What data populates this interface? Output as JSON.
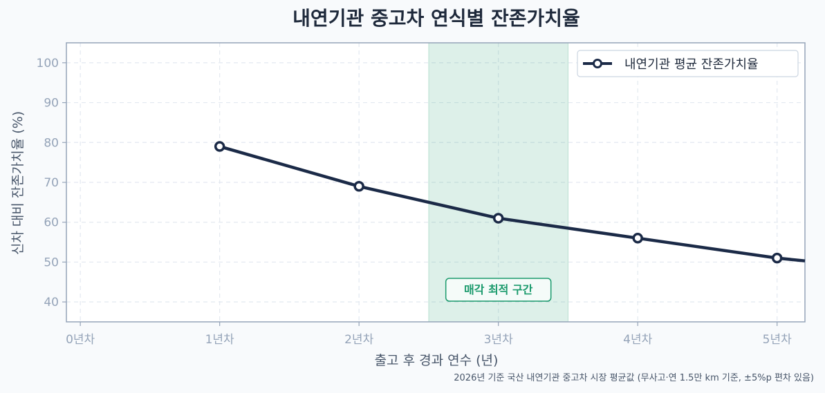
{
  "chart_data": {
    "type": "line",
    "title": "내연기관 중고차 연식별 잔존가치율",
    "xlabel": "출고 후 경과 연수 (년)",
    "ylabel": "신차 대비 잔존가치율 (%)",
    "x_ticks": [
      "0년차",
      "1년차",
      "2년차",
      "3년차",
      "4년차",
      "5년차"
    ],
    "y_ticks": [
      "40",
      "50",
      "60",
      "70",
      "80",
      "90",
      "100"
    ],
    "xlim": [
      -0.1,
      5.2
    ],
    "ylim": [
      35,
      105
    ],
    "grid": true,
    "legend_position": "top-right",
    "series": [
      {
        "name": "내연기관 평균 잔존가치율",
        "color": "#1b2a47",
        "x": [
          1,
          2,
          3,
          4,
          5
        ],
        "y": [
          79,
          69,
          61,
          56,
          51
        ],
        "extends_to_x": 5.2,
        "extends_to_y": 50.3
      }
    ],
    "highlight_band": {
      "x_start": 2.5,
      "x_end": 3.5,
      "label": "매각 최적 구간",
      "color": "#1a9a6c"
    },
    "footnote": "2026년 기준 국산 내연기관 중고차 시장 평균값 (무사고·연 1.5만 km 기준, ±5%p 편차 있음)"
  }
}
